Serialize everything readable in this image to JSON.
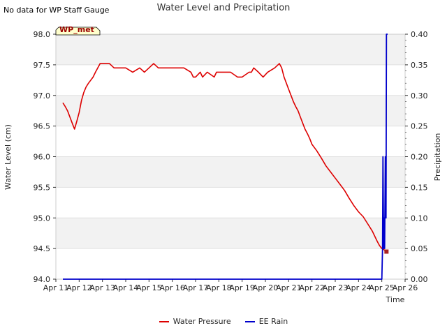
{
  "header": {
    "no_data_text": "No data for WP Staff Gauge"
  },
  "chart_data": {
    "type": "line",
    "title": "Water Level and Precipitation",
    "xlabel": "Time",
    "ylabel": "Water Level (cm)",
    "y2label": "Precipitation",
    "site_badge": "WP_met",
    "x_ticks": [
      "Apr 11",
      "Apr 12",
      "Apr 13",
      "Apr 14",
      "Apr 15",
      "Apr 16",
      "Apr 17",
      "Apr 18",
      "Apr 19",
      "Apr 20",
      "Apr 21",
      "Apr 22",
      "Apr 23",
      "Apr 24",
      "Apr 25",
      "Apr 26"
    ],
    "xlim": [
      11,
      26
    ],
    "ylim": [
      94.0,
      98.0
    ],
    "y_ticks": [
      "94.0",
      "94.5",
      "95.0",
      "95.5",
      "96.0",
      "96.5",
      "97.0",
      "97.5",
      "98.0"
    ],
    "y2lim": [
      0.0,
      0.4
    ],
    "y2_ticks": [
      "0.00",
      "0.05",
      "0.10",
      "0.15",
      "0.20",
      "0.25",
      "0.30",
      "0.35",
      "0.40"
    ],
    "grid": true,
    "legend_position": "bottom-center",
    "colors": {
      "water": "#dd0000",
      "rain": "#0000cc",
      "band": "#f2f2f2",
      "badge_bg": "#ffffcc",
      "badge_text": "#990000"
    },
    "series": [
      {
        "name": "Water Pressure",
        "axis": "left",
        "x": [
          11.3,
          11.4,
          11.5,
          11.6,
          11.7,
          11.8,
          11.9,
          12.0,
          12.1,
          12.2,
          12.3,
          12.4,
          12.5,
          12.6,
          12.7,
          12.8,
          12.9,
          13.0,
          13.1,
          13.2,
          13.3,
          13.5,
          13.8,
          14.0,
          14.3,
          14.6,
          14.8,
          15.0,
          15.2,
          15.4,
          15.6,
          15.8,
          16.0,
          16.5,
          16.8,
          16.9,
          17.0,
          17.2,
          17.3,
          17.5,
          17.8,
          17.9,
          18.0,
          18.5,
          18.8,
          19.0,
          19.3,
          19.4,
          19.5,
          19.7,
          19.9,
          20.1,
          20.4,
          20.6,
          20.7,
          20.8,
          20.9,
          21.0,
          21.1,
          21.2,
          21.3,
          21.4,
          21.5,
          21.6,
          21.7,
          21.8,
          21.9,
          22.0,
          22.2,
          22.4,
          22.6,
          22.8,
          23.0,
          23.2,
          23.4,
          23.6,
          23.8,
          24.0,
          24.2,
          24.4,
          24.6,
          24.8,
          24.9,
          25.0,
          25.1,
          25.2
        ],
        "values": [
          96.88,
          96.82,
          96.75,
          96.65,
          96.55,
          96.45,
          96.58,
          96.72,
          96.92,
          97.05,
          97.14,
          97.2,
          97.25,
          97.3,
          97.38,
          97.45,
          97.52,
          97.52,
          97.52,
          97.52,
          97.52,
          97.45,
          97.45,
          97.45,
          97.38,
          97.45,
          97.38,
          97.45,
          97.52,
          97.45,
          97.45,
          97.45,
          97.45,
          97.45,
          97.38,
          97.3,
          97.3,
          97.38,
          97.3,
          97.38,
          97.3,
          97.38,
          97.38,
          97.38,
          97.3,
          97.3,
          97.38,
          97.38,
          97.45,
          97.38,
          97.3,
          97.38,
          97.45,
          97.52,
          97.45,
          97.3,
          97.2,
          97.1,
          97.0,
          96.9,
          96.82,
          96.75,
          96.65,
          96.55,
          96.45,
          96.38,
          96.3,
          96.2,
          96.1,
          95.98,
          95.85,
          95.75,
          95.65,
          95.55,
          95.45,
          95.32,
          95.2,
          95.1,
          95.02,
          94.9,
          94.78,
          94.62,
          94.55,
          94.5,
          94.48,
          94.45
        ]
      },
      {
        "name": "EE Rain",
        "axis": "right",
        "x": [
          11.3,
          25.0,
          25.03,
          25.05,
          25.08,
          25.1,
          25.12,
          25.15,
          25.18,
          25.2,
          25.25
        ],
        "values": [
          0.0,
          0.0,
          0.05,
          0.2,
          0.05,
          0.1,
          0.05,
          0.2,
          0.1,
          0.4,
          0.4
        ]
      }
    ]
  }
}
